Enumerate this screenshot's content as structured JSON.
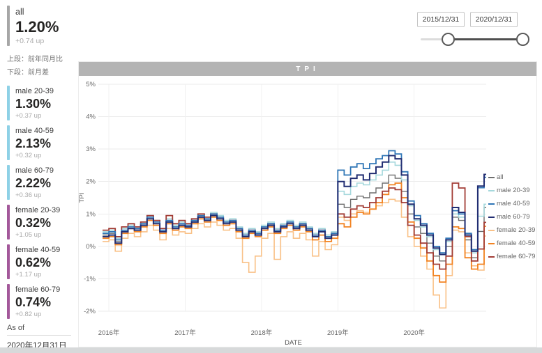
{
  "sidebar": {
    "summary": {
      "label": "all",
      "value": "1.20%",
      "delta": "+0.74 up"
    },
    "note_line1": "上段：前年同月比",
    "note_line2": "下段：前月差",
    "cards": [
      {
        "label": "male 20-39",
        "value": "1.30%",
        "delta": "+0.37 up",
        "group": "male"
      },
      {
        "label": "male 40-59",
        "value": "2.13%",
        "delta": "+0.32 up",
        "group": "male"
      },
      {
        "label": "male 60-79",
        "value": "2.22%",
        "delta": "+0.36 up",
        "group": "male"
      },
      {
        "label": "female 20-39",
        "value": "0.32%",
        "delta": "+1.05 up",
        "group": "female"
      },
      {
        "label": "female 40-59",
        "value": "0.62%",
        "delta": "+1.17 up",
        "group": "female"
      },
      {
        "label": "female 60-79",
        "value": "0.74%",
        "delta": "+0.82 up",
        "group": "female"
      }
    ],
    "as_of_label": "As of",
    "as_of_value": "2020年12月31日"
  },
  "date_filter": {
    "start": "2015/12/31",
    "end": "2020/12/31"
  },
  "chart_title": "TPI",
  "colors": {
    "sidebar_bar_all": "#a6a6a6",
    "sidebar_bar_male": "#8ed1e6",
    "sidebar_bar_female": "#a3589a",
    "title_bar": "#b4b4b4",
    "grid": "#ebebeb",
    "axis_text": "#666666",
    "slider_active": "#4f4f4f"
  },
  "chart_data": {
    "type": "line",
    "step": true,
    "title": "TPI",
    "xlabel": "DATE",
    "ylabel": "TPI",
    "ylim": [
      -2,
      5
    ],
    "yticks": [
      "5%",
      "4%",
      "3%",
      "2%",
      "1%",
      "0%",
      "-1%",
      "-2%"
    ],
    "xticks": [
      "2016年",
      "2017年",
      "2018年",
      "2019年",
      "2020年"
    ],
    "xtick_month_index": [
      1,
      13,
      25,
      37,
      49
    ],
    "x_start": "2015-12",
    "x_end": "2020-12",
    "x_interval": "month",
    "legend_position": "right",
    "grid": true,
    "draw_order": [
      4,
      0,
      1,
      5,
      6,
      2,
      3
    ],
    "series": [
      {
        "name": "all",
        "color": "#6e6e6e",
        "width": 1.4,
        "values": [
          0.35,
          0.4,
          0.15,
          0.45,
          0.55,
          0.5,
          0.65,
          0.85,
          0.7,
          0.45,
          0.75,
          0.55,
          0.65,
          0.6,
          0.75,
          0.9,
          0.8,
          0.95,
          0.85,
          0.7,
          0.75,
          0.5,
          0.3,
          0.45,
          0.35,
          0.55,
          0.65,
          0.45,
          0.6,
          0.7,
          0.55,
          0.65,
          0.5,
          0.3,
          0.45,
          0.25,
          0.35,
          1.3,
          1.2,
          1.45,
          1.55,
          1.5,
          1.65,
          1.8,
          1.95,
          2.2,
          2.1,
          1.7,
          1.0,
          0.6,
          0.4,
          0.1,
          -0.3,
          -0.45,
          0.0,
          0.9,
          0.8,
          0.2,
          -0.35,
          0.46,
          1.2
        ]
      },
      {
        "name": "male 20-39",
        "color": "#a5d8dc",
        "width": 1.6,
        "values": [
          0.45,
          0.5,
          0.25,
          0.55,
          0.65,
          0.6,
          0.75,
          0.95,
          0.8,
          0.55,
          0.85,
          0.65,
          0.75,
          0.7,
          0.85,
          1.0,
          0.9,
          1.05,
          0.95,
          0.8,
          0.85,
          0.6,
          0.4,
          0.55,
          0.45,
          0.65,
          0.75,
          0.55,
          0.7,
          0.8,
          0.65,
          0.75,
          0.6,
          0.4,
          0.55,
          0.35,
          0.45,
          1.7,
          1.6,
          1.85,
          1.95,
          1.9,
          2.05,
          2.2,
          2.35,
          2.6,
          2.5,
          2.05,
          1.25,
          0.8,
          0.6,
          0.3,
          -0.1,
          -0.25,
          0.15,
          1.0,
          0.9,
          0.3,
          -0.2,
          0.93,
          1.3
        ]
      },
      {
        "name": "male 40-59",
        "color": "#2e75b6",
        "width": 1.8,
        "values": [
          0.4,
          0.45,
          0.2,
          0.5,
          0.6,
          0.55,
          0.7,
          0.9,
          0.75,
          0.5,
          0.8,
          0.6,
          0.7,
          0.65,
          0.8,
          0.95,
          0.85,
          1.0,
          0.9,
          0.75,
          0.8,
          0.55,
          0.35,
          0.5,
          0.4,
          0.6,
          0.7,
          0.5,
          0.65,
          0.75,
          0.6,
          0.7,
          0.55,
          0.35,
          0.5,
          0.3,
          0.4,
          2.35,
          2.2,
          2.45,
          2.55,
          2.4,
          2.55,
          2.7,
          2.8,
          2.95,
          2.85,
          2.3,
          1.4,
          0.95,
          0.7,
          0.4,
          0.0,
          -0.2,
          0.25,
          1.1,
          1.0,
          0.4,
          -0.1,
          1.81,
          2.13
        ]
      },
      {
        "name": "male 60-79",
        "color": "#212d72",
        "width": 2.0,
        "values": [
          0.3,
          0.35,
          0.1,
          0.45,
          0.55,
          0.5,
          0.65,
          0.85,
          0.7,
          0.45,
          0.75,
          0.55,
          0.65,
          0.6,
          0.75,
          0.9,
          0.8,
          0.95,
          0.85,
          0.7,
          0.75,
          0.5,
          0.3,
          0.45,
          0.35,
          0.55,
          0.65,
          0.45,
          0.6,
          0.7,
          0.55,
          0.65,
          0.5,
          0.3,
          0.45,
          0.25,
          0.35,
          2.0,
          1.85,
          2.1,
          2.2,
          2.05,
          2.25,
          2.45,
          2.6,
          2.8,
          2.7,
          2.2,
          1.3,
          0.85,
          0.65,
          0.35,
          -0.05,
          -0.25,
          0.2,
          1.2,
          1.05,
          0.35,
          -0.15,
          1.86,
          2.22
        ]
      },
      {
        "name": "female 20-39",
        "color": "#f9c187",
        "width": 1.6,
        "values": [
          0.15,
          0.2,
          -0.15,
          0.25,
          0.4,
          0.3,
          0.45,
          0.65,
          0.5,
          0.2,
          0.55,
          0.35,
          0.45,
          0.4,
          0.55,
          0.7,
          0.6,
          0.75,
          0.65,
          0.5,
          0.55,
          0.25,
          -0.5,
          -0.8,
          -0.3,
          0.25,
          0.4,
          -0.4,
          0.3,
          0.45,
          0.25,
          0.4,
          0.2,
          -0.3,
          0.15,
          -0.1,
          0.05,
          0.9,
          0.8,
          1.0,
          1.1,
          1.05,
          1.15,
          1.25,
          1.35,
          1.45,
          1.4,
          0.9,
          0.3,
          0.0,
          -0.3,
          -0.7,
          -1.5,
          -1.9,
          -0.9,
          0.5,
          0.45,
          -0.2,
          -0.6,
          -0.73,
          0.32
        ]
      },
      {
        "name": "female 40-59",
        "color": "#f28322",
        "width": 1.8,
        "values": [
          0.25,
          0.3,
          0.05,
          0.4,
          0.55,
          0.45,
          0.6,
          0.8,
          0.65,
          0.4,
          0.7,
          0.5,
          0.6,
          0.55,
          0.7,
          0.85,
          0.75,
          0.9,
          0.8,
          0.65,
          0.7,
          0.45,
          0.25,
          0.4,
          0.3,
          0.5,
          0.6,
          0.4,
          0.55,
          0.65,
          0.5,
          0.6,
          0.45,
          0.2,
          0.35,
          0.15,
          0.25,
          0.7,
          0.6,
          0.9,
          1.05,
          1.0,
          1.15,
          1.35,
          1.6,
          1.9,
          1.95,
          1.5,
          0.75,
          0.25,
          -0.05,
          -0.45,
          -0.9,
          -1.1,
          -0.55,
          0.6,
          0.55,
          -0.35,
          -0.7,
          -0.55,
          0.62
        ]
      },
      {
        "name": "female 60-79",
        "color": "#a23c35",
        "width": 1.8,
        "values": [
          0.5,
          0.55,
          0.3,
          0.6,
          0.7,
          0.6,
          0.75,
          0.95,
          0.8,
          0.55,
          0.95,
          0.7,
          0.8,
          0.7,
          0.85,
          1.0,
          0.9,
          1.0,
          0.9,
          0.75,
          0.8,
          0.55,
          0.35,
          0.5,
          0.4,
          0.6,
          0.7,
          0.5,
          0.65,
          0.75,
          0.6,
          0.7,
          0.55,
          0.35,
          0.5,
          0.3,
          0.4,
          1.0,
          0.9,
          1.15,
          1.25,
          1.2,
          1.35,
          1.5,
          1.7,
          1.8,
          1.75,
          1.35,
          0.65,
          0.35,
          0.1,
          -0.2,
          -0.55,
          -0.7,
          -0.3,
          1.95,
          1.8,
          0.3,
          -0.45,
          -0.08,
          0.74
        ]
      }
    ]
  }
}
